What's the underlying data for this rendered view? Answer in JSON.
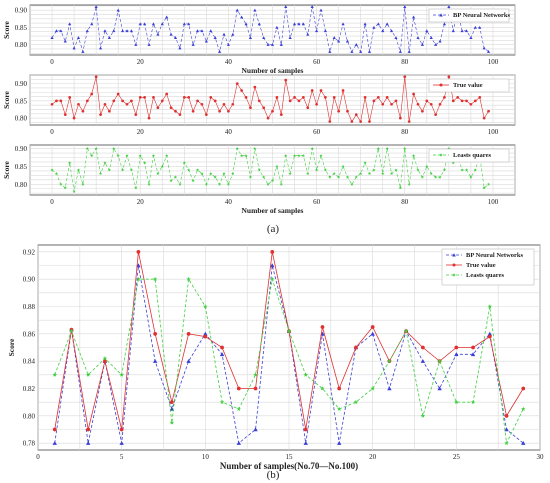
{
  "captions": {
    "a": "(a)",
    "b": "(b)"
  },
  "colors": {
    "bp": "#3a3fd6",
    "true": "#e03030",
    "ls": "#3dcf3d"
  },
  "chart_data": [
    {
      "type": "line",
      "id": "a1",
      "xlabel": "Number of samples",
      "ylabel": "Score",
      "xlim": [
        -5,
        105
      ],
      "ylim": [
        0.77,
        0.915
      ],
      "xticks": [
        0,
        20,
        40,
        60,
        80,
        100
      ],
      "yticks": [
        0.8,
        0.85,
        0.9
      ],
      "ytick_labels": [
        "0.80",
        "0.85",
        "0.90"
      ],
      "grid": true,
      "legend_position": "top-right",
      "series": [
        {
          "name": "BP Neural Networks",
          "color_key": "bp",
          "marker": "triangle",
          "dashed": true,
          "values": [
            0.82,
            0.84,
            0.84,
            0.81,
            0.86,
            0.79,
            0.82,
            0.78,
            0.84,
            0.86,
            0.91,
            0.79,
            0.84,
            0.82,
            0.84,
            0.9,
            0.84,
            0.84,
            0.84,
            0.8,
            0.86,
            0.86,
            0.8,
            0.86,
            0.83,
            0.86,
            0.88,
            0.83,
            0.82,
            0.79,
            0.86,
            0.86,
            0.8,
            0.84,
            0.84,
            0.81,
            0.84,
            0.82,
            0.78,
            0.83,
            0.8,
            0.83,
            0.9,
            0.88,
            0.86,
            0.82,
            0.9,
            0.86,
            0.82,
            0.8,
            0.8,
            0.85,
            0.8,
            0.91,
            0.82,
            0.86,
            0.86,
            0.86,
            0.83,
            0.91,
            0.84,
            0.9,
            0.84,
            0.78,
            0.82,
            0.81,
            0.86,
            0.81,
            0.78,
            0.8,
            0.78,
            0.86,
            0.78,
            0.85,
            0.86,
            0.84,
            0.86,
            0.84,
            0.82,
            0.78,
            0.91,
            0.78,
            0.88,
            0.82,
            0.8,
            0.84,
            0.82,
            0.8,
            0.81,
            0.86,
            0.91,
            0.84,
            0.9,
            0.84,
            0.84,
            0.82,
            0.85,
            0.85,
            0.79,
            0.78
          ]
        }
      ]
    },
    {
      "type": "line",
      "id": "a2",
      "xlabel": "",
      "ylabel": "Score",
      "xlim": [
        -5,
        105
      ],
      "ylim": [
        0.78,
        0.925
      ],
      "xticks": [
        0,
        20,
        40,
        60,
        80,
        100
      ],
      "yticks": [
        0.8,
        0.85,
        0.9
      ],
      "ytick_labels": [
        "0.80",
        "0.85",
        "0.90"
      ],
      "grid": true,
      "legend_position": "top-right",
      "series": [
        {
          "name": "True value",
          "color_key": "true",
          "marker": "circle",
          "dashed": false,
          "values": [
            0.84,
            0.85,
            0.85,
            0.81,
            0.86,
            0.8,
            0.84,
            0.82,
            0.85,
            0.87,
            0.92,
            0.81,
            0.84,
            0.82,
            0.85,
            0.87,
            0.85,
            0.84,
            0.85,
            0.81,
            0.86,
            0.86,
            0.8,
            0.86,
            0.83,
            0.85,
            0.87,
            0.83,
            0.82,
            0.81,
            0.86,
            0.86,
            0.82,
            0.85,
            0.84,
            0.81,
            0.86,
            0.85,
            0.82,
            0.84,
            0.82,
            0.84,
            0.9,
            0.88,
            0.86,
            0.83,
            0.89,
            0.85,
            0.83,
            0.8,
            0.82,
            0.86,
            0.81,
            0.91,
            0.85,
            0.86,
            0.85,
            0.86,
            0.83,
            0.88,
            0.84,
            0.88,
            0.86,
            0.79,
            0.86,
            0.82,
            0.88,
            0.82,
            0.79,
            0.81,
            0.79,
            0.86,
            0.79,
            0.85,
            0.86,
            0.84,
            0.86,
            0.84,
            0.85,
            0.8,
            0.92,
            0.79,
            0.87,
            0.84,
            0.82,
            0.85,
            0.84,
            0.81,
            0.84,
            0.86,
            0.92,
            0.85,
            0.86,
            0.85,
            0.85,
            0.84,
            0.85,
            0.86,
            0.8,
            0.82
          ]
        }
      ]
    },
    {
      "type": "line",
      "id": "a3",
      "xlabel": "Number of samples",
      "ylabel": "Score",
      "xlim": [
        -5,
        105
      ],
      "ylim": [
        0.77,
        0.91
      ],
      "xticks": [
        0,
        20,
        40,
        60,
        80,
        100
      ],
      "yticks": [
        0.8,
        0.85,
        0.9
      ],
      "ytick_labels": [
        "0.80",
        "0.85",
        "0.90"
      ],
      "grid": true,
      "legend_position": "top-right",
      "series": [
        {
          "name": "Leasts quares",
          "color_key": "ls",
          "marker": "star",
          "dashed": true,
          "values": [
            0.84,
            0.83,
            0.8,
            0.79,
            0.86,
            0.78,
            0.84,
            0.8,
            0.9,
            0.88,
            0.9,
            0.83,
            0.86,
            0.84,
            0.9,
            0.88,
            0.84,
            0.88,
            0.84,
            0.79,
            0.88,
            0.86,
            0.8,
            0.88,
            0.83,
            0.85,
            0.88,
            0.81,
            0.82,
            0.8,
            0.86,
            0.84,
            0.81,
            0.84,
            0.83,
            0.8,
            0.83,
            0.82,
            0.8,
            0.83,
            0.8,
            0.83,
            0.9,
            0.88,
            0.88,
            0.82,
            0.9,
            0.84,
            0.82,
            0.8,
            0.81,
            0.85,
            0.8,
            0.88,
            0.83,
            0.88,
            0.88,
            0.88,
            0.83,
            0.9,
            0.84,
            0.88,
            0.84,
            0.82,
            0.83,
            0.82,
            0.85,
            0.82,
            0.8,
            0.82,
            0.83,
            0.86,
            0.83,
            0.84,
            0.9,
            0.83,
            0.9,
            0.83,
            0.84,
            0.79,
            0.9,
            0.8,
            0.88,
            0.84,
            0.82,
            0.85,
            0.83,
            0.82,
            0.82,
            0.84,
            0.9,
            0.86,
            0.88,
            0.84,
            0.84,
            0.82,
            0.84,
            0.88,
            0.79,
            0.8
          ]
        }
      ]
    },
    {
      "type": "line",
      "id": "b",
      "xlabel": "Number of samples(No.70—No.100)",
      "ylabel": "Score",
      "xlim": [
        0,
        30
      ],
      "ylim": [
        0.775,
        0.925
      ],
      "xticks": [
        0,
        5,
        10,
        15,
        20,
        25,
        30
      ],
      "yticks": [
        0.78,
        0.8,
        0.82,
        0.84,
        0.86,
        0.88,
        0.9,
        0.92
      ],
      "ytick_labels": [
        "0.78",
        "0.80",
        "0.82",
        "0.84",
        "0.86",
        "0.88",
        "0.90",
        "0.92"
      ],
      "grid": true,
      "legend_position": "top-right",
      "x": [
        1,
        2,
        3,
        4,
        5,
        6,
        7,
        8,
        9,
        10,
        11,
        12,
        13,
        14,
        15,
        16,
        17,
        18,
        19,
        20,
        21,
        22,
        23,
        24,
        25,
        26,
        27,
        28,
        29
      ],
      "series": [
        {
          "name": "BP Neural Networks",
          "color_key": "bp",
          "marker": "triangle",
          "dashed": true,
          "values": [
            0.78,
            0.863,
            0.78,
            0.84,
            0.78,
            0.91,
            0.84,
            0.805,
            0.84,
            0.86,
            0.845,
            0.78,
            0.79,
            0.91,
            0.862,
            0.78,
            0.86,
            0.78,
            0.85,
            0.86,
            0.82,
            0.862,
            0.84,
            0.82,
            0.845,
            0.845,
            0.86,
            0.79,
            0.78
          ]
        },
        {
          "name": "True value",
          "color_key": "true",
          "marker": "circle",
          "dashed": false,
          "values": [
            0.79,
            0.863,
            0.79,
            0.84,
            0.79,
            0.92,
            0.86,
            0.81,
            0.86,
            0.858,
            0.85,
            0.82,
            0.82,
            0.92,
            0.862,
            0.79,
            0.865,
            0.82,
            0.85,
            0.865,
            0.84,
            0.862,
            0.85,
            0.84,
            0.85,
            0.85,
            0.858,
            0.8,
            0.82
          ]
        },
        {
          "name": "Leasts quares",
          "color_key": "ls",
          "marker": "star",
          "dashed": true,
          "values": [
            0.83,
            0.862,
            0.83,
            0.842,
            0.83,
            0.9,
            0.9,
            0.795,
            0.9,
            0.88,
            0.81,
            0.805,
            0.83,
            0.9,
            0.862,
            0.83,
            0.82,
            0.805,
            0.81,
            0.82,
            0.84,
            0.862,
            0.8,
            0.84,
            0.81,
            0.81,
            0.88,
            0.78,
            0.805
          ]
        }
      ]
    }
  ]
}
